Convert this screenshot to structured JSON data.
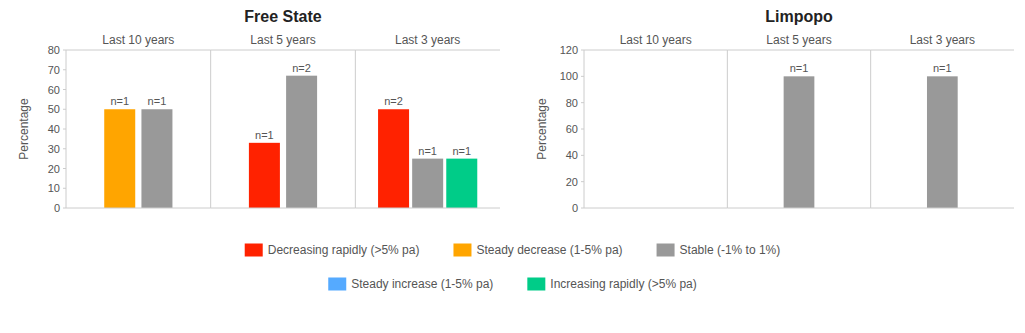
{
  "chart_data": [
    {
      "type": "bar",
      "title": "Free State",
      "y_label": "Percentage",
      "categories": [
        "Last 10 years",
        "Last 5 years",
        "Last 3 years"
      ],
      "series": [
        {
          "name": "Decreasing rapidly (>5% pa)",
          "color": "#FF2200",
          "values": [
            null,
            33,
            50
          ],
          "n_labels": [
            null,
            "n=1",
            "n=2"
          ]
        },
        {
          "name": "Steady decrease (1-5% pa)",
          "color": "#FFA500",
          "values": [
            50,
            null,
            null
          ],
          "n_labels": [
            "n=1",
            null,
            null
          ]
        },
        {
          "name": "Stable (-1% to 1%)",
          "color": "#999999",
          "values": [
            50,
            67,
            25
          ],
          "n_labels": [
            "n=1",
            "n=2",
            "n=1"
          ]
        },
        {
          "name": "Steady increase (1-5% pa)",
          "color": "#55AAFF",
          "values": [
            null,
            null,
            null
          ],
          "n_labels": [
            null,
            null,
            null
          ]
        },
        {
          "name": "Increasing rapidly (>5% pa)",
          "color": "#00CC88",
          "values": [
            null,
            null,
            25
          ],
          "n_labels": [
            null,
            null,
            "n=1"
          ]
        }
      ],
      "ylim": [
        0,
        80
      ],
      "yticks": [
        0,
        10,
        20,
        30,
        40,
        50,
        60,
        70,
        80
      ],
      "grid": false,
      "legend": "bottom"
    },
    {
      "type": "bar",
      "title": "Limpopo",
      "y_label": "Percentage",
      "categories": [
        "Last 10 years",
        "Last 5 years",
        "Last 3 years"
      ],
      "series": [
        {
          "name": "Stable (-1% to 1%)",
          "color": "#999999",
          "values": [
            null,
            100,
            100
          ],
          "n_labels": [
            null,
            "n=1",
            "n=1"
          ]
        }
      ],
      "ylim": [
        0,
        120
      ],
      "yticks": [
        0,
        20,
        40,
        60,
        80,
        100,
        120
      ],
      "grid": false
    }
  ]
}
